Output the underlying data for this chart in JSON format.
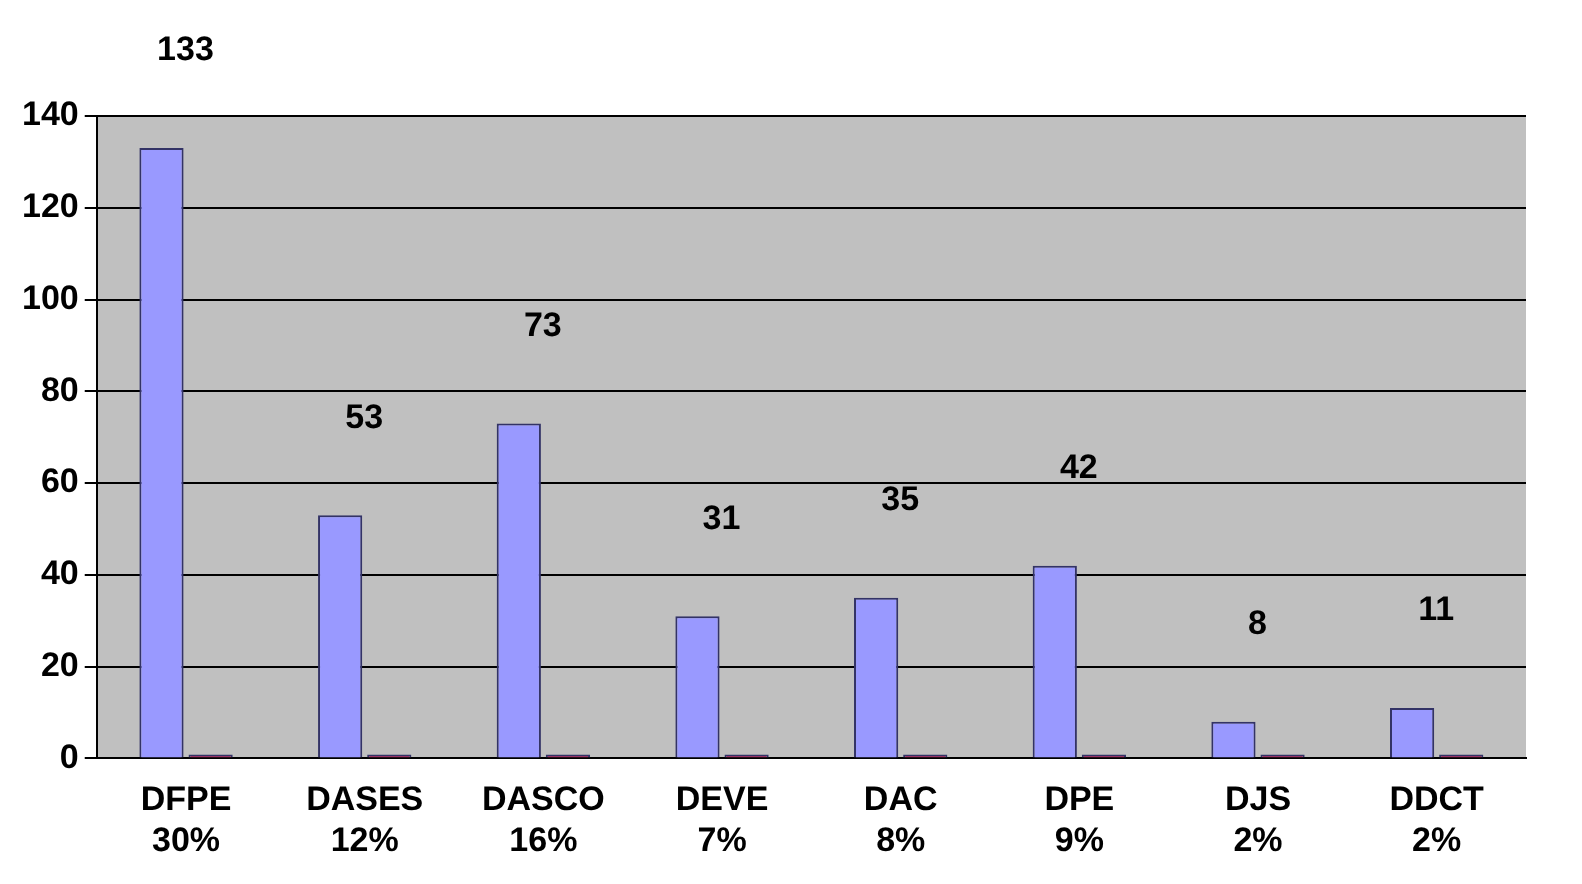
{
  "chart_data": {
    "type": "bar",
    "categories": [
      "DFPE\n30%",
      "DASES\n12%",
      "DASCO\n16%",
      "DEVE\n7%",
      "DAC\n8%",
      "DPE\n9%",
      "DJS\n2%",
      "DDCT\n2%"
    ],
    "series": [
      {
        "color": "#9999ff",
        "values": [
          133,
          53,
          73,
          31,
          35,
          42,
          8,
          11
        ],
        "value_labels": [
          "133",
          "53",
          "73",
          "31",
          "35",
          "42",
          "8",
          "11"
        ]
      },
      {
        "color": "#993366",
        "values": [
          0,
          0,
          0,
          0,
          0,
          0,
          0,
          0
        ]
      }
    ],
    "ylim": [
      0,
      140
    ],
    "yticks": [
      0,
      20,
      40,
      60,
      80,
      100,
      120,
      140
    ],
    "grid": "y",
    "legend": false
  }
}
